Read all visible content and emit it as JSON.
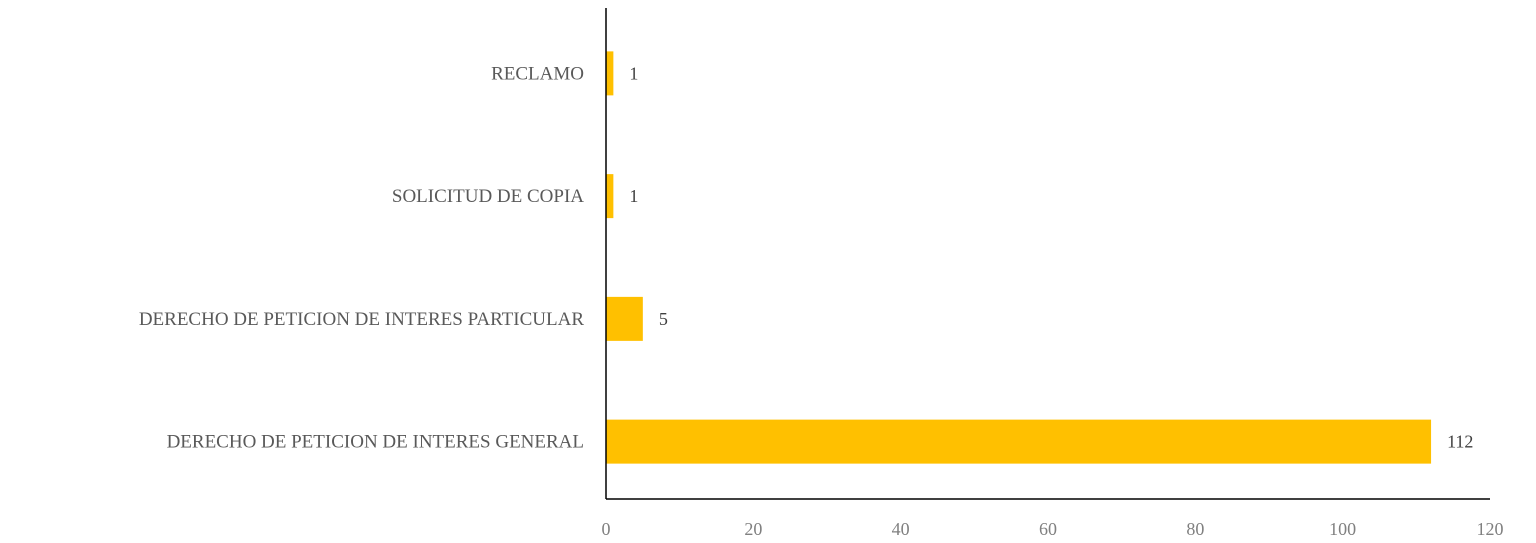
{
  "chart_data": {
    "type": "bar",
    "orientation": "horizontal",
    "categories": [
      "RECLAMO",
      "SOLICITUD DE COPIA",
      "DERECHO DE PETICION DE INTERES PARTICULAR",
      "DERECHO DE PETICION DE INTERES GENERAL"
    ],
    "values": [
      1,
      1,
      5,
      112
    ],
    "xlim": [
      0,
      120
    ],
    "x_ticks": [
      "0",
      "20",
      "40",
      "60",
      "80",
      "100",
      "120"
    ],
    "data_labels": true,
    "grid": false,
    "legend": "none",
    "colors": {
      "bar": "#FFC000",
      "axis": "#000000"
    }
  }
}
